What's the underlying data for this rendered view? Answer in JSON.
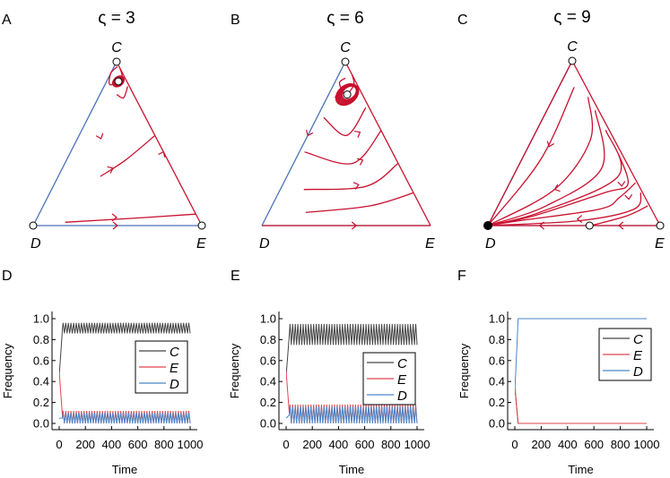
{
  "colors": {
    "trajectory": "#c8102e",
    "edge_blue": "#4a72b8",
    "series_C": "#444444",
    "series_E": "#e0444e",
    "series_D": "#4a86c8",
    "frame": "#000000"
  },
  "chart_data": [
    {
      "panel": "A",
      "type": "ternary",
      "title": "ς = 3",
      "vertices": [
        "C",
        "D",
        "E"
      ],
      "fixed_points": [
        {
          "name": "C",
          "kind": "unstable"
        },
        {
          "name": "D",
          "kind": "unstable"
        },
        {
          "name": "E",
          "kind": "unstable"
        },
        {
          "name": "interior near C",
          "kind": "center-like"
        }
      ],
      "arrows": [
        {
          "bary": [
            0.53,
            0.33,
            0.14
          ],
          "dir": [
            0.35,
            1.0
          ]
        },
        {
          "bary": [
            0.35,
            0.35,
            0.3
          ],
          "dir": [
            1.0,
            -0.45
          ]
        },
        {
          "bary": [
            0.45,
            0.0,
            0.55
          ],
          "dir": [
            0.45,
            -1.0
          ]
        },
        {
          "bary": [
            0.05,
            0.48,
            0.47
          ],
          "dir": [
            1.0,
            0.0
          ]
        },
        {
          "bary": [
            0.0,
            0.5,
            0.5
          ],
          "dir": [
            1.0,
            0.0
          ]
        }
      ],
      "trajectories": [
        [
          [
            0.97,
            0.01,
            0.02
          ],
          [
            0.93,
            0.07,
            0.0
          ],
          [
            0.86,
            0.11,
            0.03
          ],
          [
            0.9,
            0.02,
            0.08
          ],
          [
            0.96,
            0.0,
            0.04
          ]
        ],
        [
          [
            0.8,
            0.1,
            0.1
          ],
          [
            0.78,
            0.07,
            0.15
          ],
          [
            0.85,
            0.01,
            0.14
          ]
        ],
        [
          [
            0.3,
            0.45,
            0.25
          ],
          [
            0.4,
            0.25,
            0.35
          ],
          [
            0.55,
            0.0,
            0.45
          ]
        ],
        [
          [
            0.02,
            0.8,
            0.18
          ],
          [
            0.05,
            0.3,
            0.65
          ],
          [
            0.07,
            0.0,
            0.93
          ]
        ]
      ]
    },
    {
      "panel": "B",
      "type": "ternary",
      "title": "ς = 6",
      "vertices": [
        "C",
        "D",
        "E"
      ],
      "fixed_points": [
        {
          "name": "C",
          "kind": "unstable"
        },
        {
          "name": "interior near C",
          "kind": "center-like"
        }
      ],
      "arrows": [
        {
          "bary": [
            0.78,
            0.14,
            0.08
          ],
          "dir": [
            1.0,
            -0.6
          ]
        },
        {
          "bary": [
            0.57,
            0.13,
            0.3
          ],
          "dir": [
            1.0,
            -0.55
          ]
        },
        {
          "bary": [
            0.4,
            0.2,
            0.4
          ],
          "dir": [
            1.0,
            -0.45
          ]
        },
        {
          "bary": [
            0.25,
            0.3,
            0.45
          ],
          "dir": [
            1.0,
            -0.3
          ]
        },
        {
          "bary": [
            0.55,
            0.45,
            0.0
          ],
          "dir": [
            -0.45,
            1.0
          ]
        },
        {
          "bary": [
            0.0,
            0.44,
            0.56
          ],
          "dir": [
            1.0,
            0.0
          ]
        }
      ],
      "trajectories": [
        [
          [
            0.9,
            0.05,
            0.05
          ],
          [
            0.87,
            0.1,
            0.03
          ],
          [
            0.8,
            0.1,
            0.1
          ],
          [
            0.86,
            0.02,
            0.12
          ],
          [
            0.92,
            0.0,
            0.08
          ]
        ],
        [
          [
            0.66,
            0.3,
            0.04
          ],
          [
            0.55,
            0.22,
            0.23
          ],
          [
            0.72,
            0.02,
            0.26
          ]
        ],
        [
          [
            0.45,
            0.52,
            0.03
          ],
          [
            0.38,
            0.27,
            0.35
          ],
          [
            0.58,
            0.0,
            0.42
          ]
        ],
        [
          [
            0.22,
            0.64,
            0.14
          ],
          [
            0.24,
            0.26,
            0.5
          ],
          [
            0.38,
            0.0,
            0.62
          ]
        ],
        [
          [
            0.08,
            0.7,
            0.22
          ],
          [
            0.12,
            0.3,
            0.58
          ],
          [
            0.2,
            0.0,
            0.8
          ]
        ],
        [
          [
            0.0,
            1.0,
            0.0
          ],
          [
            0.0,
            0.0,
            1.0
          ]
        ]
      ]
    },
    {
      "panel": "C",
      "type": "ternary",
      "title": "ς = 9",
      "vertices": [
        "C",
        "D",
        "E"
      ],
      "fixed_points": [
        {
          "name": "D",
          "kind": "stable"
        },
        {
          "name": "C",
          "kind": "unstable"
        },
        {
          "name": "E",
          "kind": "unstable"
        },
        {
          "name": "D–E edge point",
          "kind": "saddle"
        }
      ],
      "arrows": [
        {
          "bary": [
            0.48,
            0.4,
            0.12
          ],
          "dir": [
            -0.4,
            1.0
          ]
        },
        {
          "bary": [
            0.22,
            0.5,
            0.28
          ],
          "dir": [
            -1.0,
            0.35
          ]
        },
        {
          "bary": [
            0.24,
            0.1,
            0.66
          ],
          "dir": [
            0.1,
            1.0
          ]
        },
        {
          "bary": [
            0.16,
            0.1,
            0.74
          ],
          "dir": [
            0.1,
            1.0
          ]
        },
        {
          "bary": [
            0.04,
            0.46,
            0.5
          ],
          "dir": [
            -1.0,
            0.0
          ]
        },
        {
          "bary": [
            0.0,
            0.24,
            0.76
          ],
          "dir": [
            -1.0,
            0.0
          ]
        },
        {
          "bary": [
            0.0,
            0.7,
            0.3
          ],
          "dir": [
            -1.0,
            0.0
          ]
        }
      ],
      "trajectories": [
        [
          [
            1.0,
            0.0,
            0.0
          ],
          [
            0.0,
            1.0,
            0.0
          ]
        ],
        [
          [
            0.84,
            0.07,
            0.09
          ],
          [
            0.4,
            0.49,
            0.11
          ],
          [
            0.0,
            1.0,
            0.0
          ]
        ],
        [
          [
            0.78,
            0.02,
            0.2
          ],
          [
            0.52,
            0.14,
            0.34
          ],
          [
            0.22,
            0.5,
            0.28
          ],
          [
            0.0,
            1.0,
            0.0
          ]
        ],
        [
          [
            0.7,
            0.02,
            0.28
          ],
          [
            0.35,
            0.16,
            0.49
          ],
          [
            0.12,
            0.6,
            0.28
          ],
          [
            0.0,
            1.0,
            0.0
          ]
        ],
        [
          [
            0.58,
            0.02,
            0.4
          ],
          [
            0.3,
            0.09,
            0.61
          ],
          [
            0.08,
            0.66,
            0.26
          ],
          [
            0.0,
            1.0,
            0.0
          ]
        ],
        [
          [
            0.43,
            0.02,
            0.55
          ],
          [
            0.25,
            0.06,
            0.69
          ],
          [
            0.2,
            0.22,
            0.58
          ],
          [
            0.06,
            0.7,
            0.24
          ],
          [
            0.0,
            1.0,
            0.0
          ]
        ],
        [
          [
            0.26,
            0.01,
            0.73
          ],
          [
            0.17,
            0.15,
            0.68
          ],
          [
            0.1,
            0.3,
            0.6
          ],
          [
            0.03,
            0.8,
            0.17
          ],
          [
            0.0,
            1.0,
            0.0
          ]
        ],
        [
          [
            0.2,
            0.01,
            0.79
          ],
          [
            0.1,
            0.1,
            0.8
          ],
          [
            0.03,
            0.45,
            0.52
          ],
          [
            0.0,
            1.0,
            0.0
          ]
        ],
        [
          [
            0.12,
            0.01,
            0.87
          ],
          [
            0.06,
            0.16,
            0.78
          ],
          [
            0.0,
            0.4,
            0.6
          ]
        ],
        [
          [
            0.0,
            0.0,
            1.0
          ],
          [
            0.0,
            1.0,
            0.0
          ]
        ]
      ]
    },
    {
      "panel": "D",
      "type": "line",
      "xlabel": "Time",
      "ylabel": "Frequency",
      "xlim": [
        0,
        1000
      ],
      "ylim": [
        0.0,
        1.0
      ],
      "xticks": [
        "0",
        "200",
        "400",
        "600",
        "800",
        "1000"
      ],
      "yticks": [
        "0.0",
        "0.2",
        "0.4",
        "0.6",
        "0.8",
        "1.0"
      ],
      "legend": {
        "position": "right-middle",
        "entries": [
          "C",
          "E",
          "D"
        ]
      },
      "series": [
        {
          "name": "C",
          "type": "oscillation",
          "start": 0.45,
          "low": 0.86,
          "high": 0.96,
          "period": 20
        },
        {
          "name": "E",
          "type": "oscillation",
          "start": 0.5,
          "low": 0.0,
          "high": 0.12,
          "period": 20
        },
        {
          "name": "D",
          "type": "oscillation",
          "start": 0.05,
          "low": 0.0,
          "high": 0.1,
          "period": 20
        }
      ]
    },
    {
      "panel": "E",
      "type": "line",
      "xlabel": "Time",
      "ylabel": "Frequency",
      "xlim": [
        0,
        1000
      ],
      "ylim": [
        0.0,
        1.0
      ],
      "xticks": [
        "0",
        "200",
        "400",
        "600",
        "800",
        "1000"
      ],
      "yticks": [
        "0.0",
        "0.2",
        "0.4",
        "0.6",
        "0.8",
        "1.0"
      ],
      "legend": {
        "position": "right-middle",
        "entries": [
          "C",
          "E",
          "D"
        ]
      },
      "series": [
        {
          "name": "C",
          "type": "oscillation",
          "start": 0.45,
          "low": 0.75,
          "high": 0.95,
          "period": 20
        },
        {
          "name": "E",
          "type": "oscillation",
          "start": 0.5,
          "low": 0.0,
          "high": 0.18,
          "period": 20
        },
        {
          "name": "D",
          "type": "oscillation",
          "start": 0.05,
          "low": 0.0,
          "high": 0.16,
          "period": 20
        }
      ]
    },
    {
      "panel": "F",
      "type": "line",
      "xlabel": "Time",
      "ylabel": "Frequency",
      "xlim": [
        0,
        1000
      ],
      "ylim": [
        0.0,
        1.0
      ],
      "xticks": [
        "0",
        "200",
        "400",
        "600",
        "800",
        "1000"
      ],
      "yticks": [
        "0.0",
        "0.2",
        "0.4",
        "0.6",
        "0.8",
        "1.0"
      ],
      "legend": {
        "position": "top-right",
        "entries": [
          "C",
          "E",
          "D"
        ]
      },
      "series": [
        {
          "name": "C",
          "type": "constant",
          "start": 0.35,
          "value": 0.0
        },
        {
          "name": "E",
          "type": "constant",
          "start": 0.35,
          "value": 0.0
        },
        {
          "name": "D",
          "type": "constant",
          "start": 0.3,
          "value": 1.0
        }
      ]
    }
  ]
}
